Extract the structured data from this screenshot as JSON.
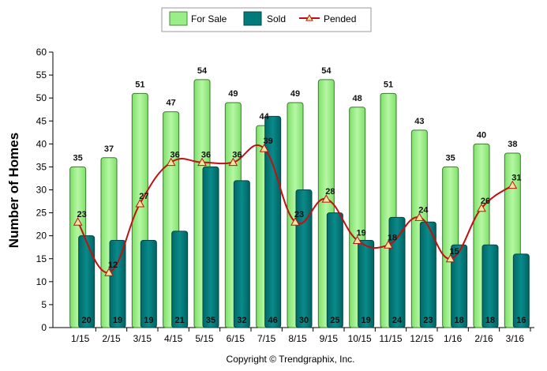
{
  "chart_data": {
    "type": "bar",
    "categories": [
      "1/15",
      "2/15",
      "3/15",
      "4/15",
      "5/15",
      "6/15",
      "7/15",
      "8/15",
      "9/15",
      "10/15",
      "11/15",
      "12/15",
      "1/16",
      "2/16",
      "3/16"
    ],
    "series": [
      {
        "name": "For Sale",
        "type": "bar",
        "color": "#99ee88",
        "values": [
          35,
          37,
          51,
          47,
          54,
          49,
          44,
          49,
          54,
          48,
          51,
          43,
          35,
          40,
          38
        ]
      },
      {
        "name": "Sold",
        "type": "bar",
        "color": "#007a7a",
        "values": [
          20,
          19,
          19,
          21,
          35,
          32,
          46,
          30,
          25,
          19,
          24,
          23,
          18,
          18,
          16
        ]
      },
      {
        "name": "Pended",
        "type": "line",
        "color": "#c01010",
        "values": [
          23,
          12,
          27,
          36,
          36,
          36,
          39,
          23,
          28,
          19,
          18,
          24,
          15,
          26,
          31
        ]
      }
    ],
    "ylabel": "Number of Homes",
    "ylim": [
      0,
      60
    ],
    "yticks": [
      0,
      5,
      10,
      15,
      20,
      25,
      30,
      35,
      40,
      45,
      50,
      55,
      60
    ],
    "grid": false,
    "legend_position": "top-center"
  },
  "copyright": "Copyright © Trendgraphix, Inc."
}
